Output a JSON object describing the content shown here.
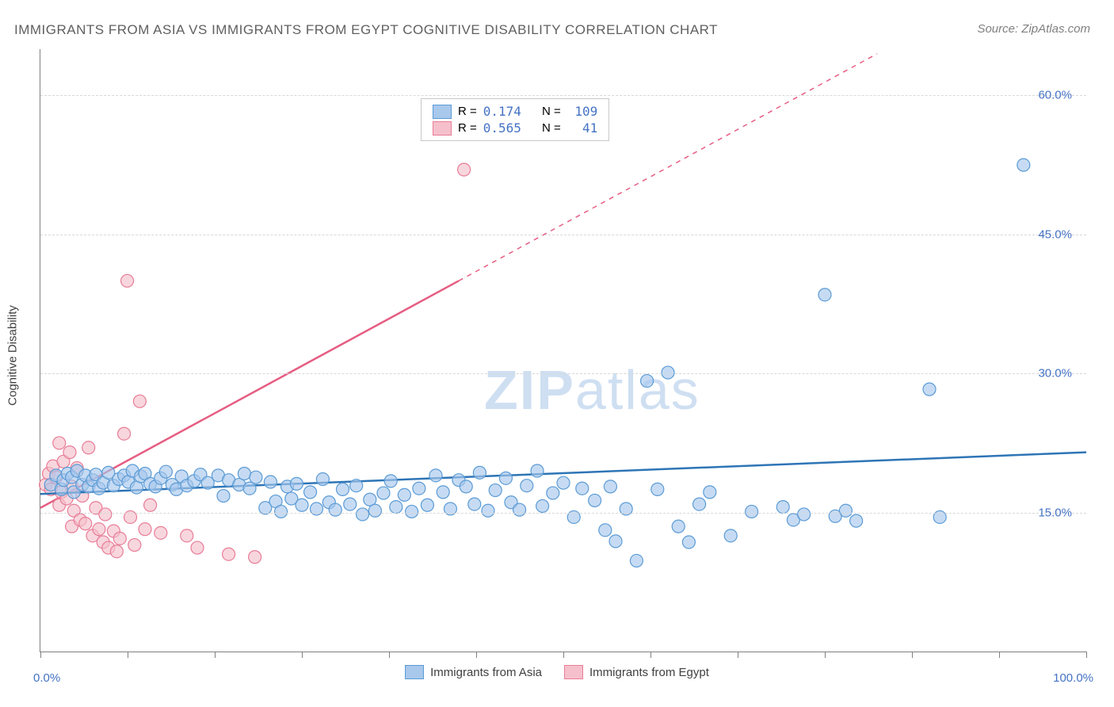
{
  "title": "IMMIGRANTS FROM ASIA VS IMMIGRANTS FROM EGYPT COGNITIVE DISABILITY CORRELATION CHART",
  "source": "Source: ZipAtlas.com",
  "y_axis_label": "Cognitive Disability",
  "watermark": {
    "bold": "ZIP",
    "light": "atlas"
  },
  "chart": {
    "type": "scatter-with-trend",
    "xlim": [
      0,
      100
    ],
    "ylim": [
      0,
      65
    ],
    "xticks": [
      0,
      8.3,
      16.7,
      25,
      33.3,
      41.7,
      50,
      58.3,
      66.7,
      75,
      83.3,
      91.7,
      100
    ],
    "xtick_labels": {
      "0": "0.0%",
      "100": "100.0%"
    },
    "yticks": [
      15,
      30,
      45,
      60
    ],
    "ytick_labels": [
      "15.0%",
      "30.0%",
      "45.0%",
      "60.0%"
    ],
    "background_color": "#ffffff",
    "grid_color": "#d8d8d8"
  },
  "series": {
    "asia": {
      "label": "Immigrants from Asia",
      "color_fill": "#a8c8ec",
      "color_stroke": "#5b9bd5",
      "trend_color": "#2e75b6",
      "marker_radius": 8,
      "R": "0.174",
      "N": "109",
      "trend": {
        "x1": 0,
        "y1": 17,
        "x2": 100,
        "y2": 21.5,
        "dash_from_x": 100
      },
      "points": [
        [
          1,
          18
        ],
        [
          1.5,
          19
        ],
        [
          2,
          17.5
        ],
        [
          2.2,
          18.5
        ],
        [
          2.6,
          19.2
        ],
        [
          3,
          18.8
        ],
        [
          3.2,
          17.2
        ],
        [
          3.5,
          19.5
        ],
        [
          4,
          18
        ],
        [
          4.3,
          19
        ],
        [
          4.6,
          17.8
        ],
        [
          5,
          18.5
        ],
        [
          5.3,
          19.1
        ],
        [
          5.6,
          17.6
        ],
        [
          6,
          18.2
        ],
        [
          6.5,
          19.3
        ],
        [
          7,
          17.9
        ],
        [
          7.5,
          18.6
        ],
        [
          8,
          19
        ],
        [
          8.4,
          18.3
        ],
        [
          8.8,
          19.5
        ],
        [
          9.2,
          17.7
        ],
        [
          9.6,
          18.9
        ],
        [
          10,
          19.2
        ],
        [
          10.5,
          18.1
        ],
        [
          11,
          17.8
        ],
        [
          11.5,
          18.7
        ],
        [
          12,
          19.4
        ],
        [
          12.6,
          18
        ],
        [
          13,
          17.5
        ],
        [
          13.5,
          18.9
        ],
        [
          14,
          17.9
        ],
        [
          14.7,
          18.4
        ],
        [
          15.3,
          19.1
        ],
        [
          16,
          18.2
        ],
        [
          17,
          19
        ],
        [
          17.5,
          16.8
        ],
        [
          18,
          18.5
        ],
        [
          19,
          18
        ],
        [
          19.5,
          19.2
        ],
        [
          20,
          17.6
        ],
        [
          20.6,
          18.8
        ],
        [
          21.5,
          15.5
        ],
        [
          22,
          18.3
        ],
        [
          22.5,
          16.2
        ],
        [
          23,
          15.1
        ],
        [
          23.6,
          17.8
        ],
        [
          24,
          16.5
        ],
        [
          24.5,
          18.1
        ],
        [
          25,
          15.8
        ],
        [
          25.8,
          17.2
        ],
        [
          26.4,
          15.4
        ],
        [
          27,
          18.6
        ],
        [
          27.6,
          16.1
        ],
        [
          28.2,
          15.3
        ],
        [
          28.9,
          17.5
        ],
        [
          29.6,
          15.9
        ],
        [
          30.2,
          17.9
        ],
        [
          30.8,
          14.8
        ],
        [
          31.5,
          16.4
        ],
        [
          32,
          15.2
        ],
        [
          32.8,
          17.1
        ],
        [
          33.5,
          18.4
        ],
        [
          34,
          15.6
        ],
        [
          34.8,
          16.9
        ],
        [
          35.5,
          15.1
        ],
        [
          36.2,
          17.6
        ],
        [
          37,
          15.8
        ],
        [
          37.8,
          19
        ],
        [
          38.5,
          17.2
        ],
        [
          39.2,
          15.4
        ],
        [
          40,
          18.5
        ],
        [
          40.7,
          17.8
        ],
        [
          41.5,
          15.9
        ],
        [
          42,
          19.3
        ],
        [
          42.8,
          15.2
        ],
        [
          43.5,
          17.4
        ],
        [
          44.5,
          18.7
        ],
        [
          45,
          16.1
        ],
        [
          45.8,
          15.3
        ],
        [
          46.5,
          17.9
        ],
        [
          47.5,
          19.5
        ],
        [
          48,
          15.7
        ],
        [
          49,
          17.1
        ],
        [
          50,
          18.2
        ],
        [
          51,
          14.5
        ],
        [
          51.8,
          17.6
        ],
        [
          53,
          16.3
        ],
        [
          54,
          13.1
        ],
        [
          54.5,
          17.8
        ],
        [
          55,
          11.9
        ],
        [
          56,
          15.4
        ],
        [
          57,
          9.8
        ],
        [
          58,
          29.2
        ],
        [
          59,
          17.5
        ],
        [
          60,
          30.1
        ],
        [
          61,
          13.5
        ],
        [
          62,
          11.8
        ],
        [
          63,
          15.9
        ],
        [
          64,
          17.2
        ],
        [
          66,
          12.5
        ],
        [
          68,
          15.1
        ],
        [
          71,
          15.6
        ],
        [
          72,
          14.2
        ],
        [
          73,
          14.8
        ],
        [
          75,
          38.5
        ],
        [
          76,
          14.6
        ],
        [
          77,
          15.2
        ],
        [
          78,
          14.1
        ],
        [
          85,
          28.3
        ],
        [
          86,
          14.5
        ],
        [
          94,
          52.5
        ]
      ]
    },
    "egypt": {
      "label": "Immigrants from Egypt",
      "color_fill": "#f5c0cb",
      "color_stroke": "#e87d97",
      "trend_color": "#e65d82",
      "marker_radius": 8,
      "R": "0.565",
      "N": "41",
      "trend": {
        "x1": 0,
        "y1": 15.5,
        "x2": 40,
        "y2": 40,
        "dash_from_x": 40,
        "x2_dash": 80,
        "y2_dash": 64.5
      },
      "points": [
        [
          0.5,
          18
        ],
        [
          0.8,
          19.2
        ],
        [
          1,
          17.5
        ],
        [
          1.2,
          20
        ],
        [
          1.5,
          18.8
        ],
        [
          1.8,
          22.5
        ],
        [
          1.8,
          15.8
        ],
        [
          2,
          17.2
        ],
        [
          2.2,
          20.5
        ],
        [
          2.5,
          16.5
        ],
        [
          2.8,
          21.5
        ],
        [
          3,
          17.8
        ],
        [
          3,
          13.5
        ],
        [
          3.2,
          15.2
        ],
        [
          3.5,
          19.8
        ],
        [
          3.8,
          14.2
        ],
        [
          4,
          16.8
        ],
        [
          4.3,
          13.8
        ],
        [
          4.6,
          22
        ],
        [
          5,
          12.5
        ],
        [
          5.3,
          15.5
        ],
        [
          5.6,
          13.2
        ],
        [
          6,
          11.8
        ],
        [
          6.2,
          14.8
        ],
        [
          6.5,
          11.2
        ],
        [
          7,
          13
        ],
        [
          7.3,
          10.8
        ],
        [
          7.6,
          12.2
        ],
        [
          8,
          23.5
        ],
        [
          8.3,
          40
        ],
        [
          8.6,
          14.5
        ],
        [
          9,
          11.5
        ],
        [
          9.5,
          27
        ],
        [
          10,
          13.2
        ],
        [
          10.5,
          15.8
        ],
        [
          11.5,
          12.8
        ],
        [
          14,
          12.5
        ],
        [
          15,
          11.2
        ],
        [
          18,
          10.5
        ],
        [
          20.5,
          10.2
        ],
        [
          40.5,
          52
        ]
      ]
    }
  },
  "legend_top": {
    "row1_R_label": "R =",
    "row1_N_label": "N =",
    "row2_R_label": "R =",
    "row2_N_label": "N ="
  }
}
